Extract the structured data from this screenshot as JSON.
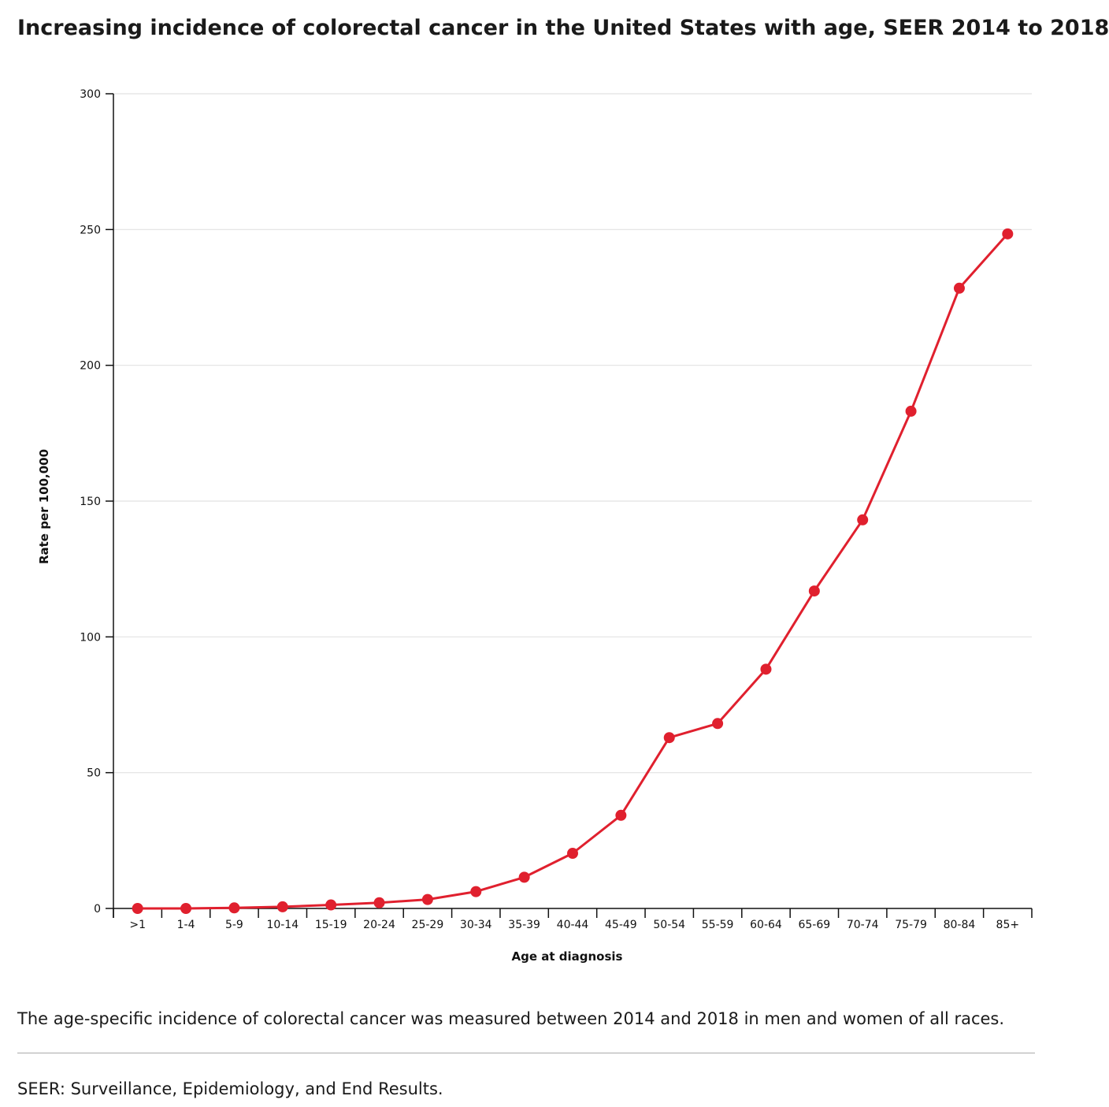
{
  "title": "Increasing incidence of colorectal cancer in the United States with age, SEER 2014 to 2018",
  "caption": "The age-specific incidence of colorectal cancer was measured between 2014 and 2018 in men and women of all races.",
  "footnote": "SEER: Surveillance, Epidemiology, and End Results.",
  "colors": {
    "series": "#e0202e",
    "grid": "#e2e2e2",
    "axis": "#111111"
  },
  "chart_data": {
    "type": "line",
    "xlabel": "Age at diagnosis",
    "ylabel": "Rate per 100,000",
    "categories": [
      ">1",
      "1-4",
      "5-9",
      "10-14",
      "15-19",
      "20-24",
      "25-29",
      "30-34",
      "35-39",
      "40-44",
      "45-49",
      "50-54",
      "55-59",
      "60-64",
      "65-69",
      "70-74",
      "75-79",
      "80-84",
      "85+"
    ],
    "series": [
      {
        "values": [
          0,
          0,
          0.2,
          0.6,
          1.3,
          2.1,
          3.3,
          6.2,
          11.5,
          20.3,
          34.3,
          62.9,
          68.1,
          88.1,
          116.9,
          143.1,
          183.1,
          228.4,
          248.4
        ],
        "marker": "circle"
      }
    ],
    "ylim": [
      0,
      300
    ],
    "yticks": [
      0,
      50,
      100,
      150,
      200,
      250,
      300
    ],
    "grid": "horizontal",
    "legend": "none"
  }
}
